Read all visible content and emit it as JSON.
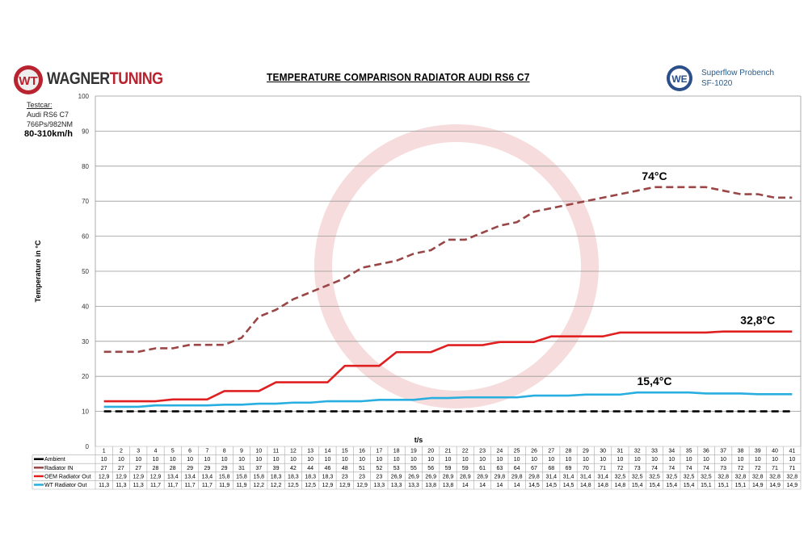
{
  "header": {
    "brand_part1": "WAGNER",
    "brand_part2": "TUNING",
    "bench_line1": "Superflow Probench",
    "bench_line2": "SF-1020"
  },
  "testcar": {
    "label": "Testcar:",
    "model": "Audi RS6 C7",
    "power": "766Ps/982NM",
    "speed": "80-310km/h"
  },
  "chart_data": {
    "type": "line",
    "title": "TEMPERATURE COMPARISON RADIATOR AUDI RS6 C7",
    "xlabel": "t/s",
    "ylabel": "Temperature in °C",
    "ylim": [
      0,
      100
    ],
    "yticks": [
      0,
      10,
      20,
      30,
      40,
      50,
      60,
      70,
      80,
      90,
      100
    ],
    "grid": true,
    "legend": "data-table-below",
    "categories": [
      1,
      2,
      3,
      4,
      5,
      6,
      7,
      8,
      9,
      10,
      11,
      12,
      13,
      14,
      15,
      16,
      17,
      18,
      19,
      20,
      21,
      22,
      23,
      24,
      25,
      26,
      27,
      28,
      29,
      30,
      31,
      32,
      33,
      34,
      35,
      36,
      37,
      38,
      39,
      40,
      41
    ],
    "series": [
      {
        "name": "Ambient",
        "color": "#000000",
        "dash": true,
        "values": [
          10,
          10,
          10,
          10,
          10,
          10,
          10,
          10,
          10,
          10,
          10,
          10,
          10,
          10,
          10,
          10,
          10,
          10,
          10,
          10,
          10,
          10,
          10,
          10,
          10,
          10,
          10,
          10,
          10,
          10,
          10,
          10,
          10,
          10,
          10,
          10,
          10,
          10,
          10,
          10,
          10
        ],
        "labels": [
          "10",
          "10",
          "10",
          "10",
          "10",
          "10",
          "10",
          "10",
          "10",
          "10",
          "10",
          "10",
          "10",
          "10",
          "10",
          "10",
          "10",
          "10",
          "10",
          "10",
          "10",
          "10",
          "10",
          "10",
          "10",
          "10",
          "10",
          "10",
          "10",
          "10",
          "10",
          "10",
          "10",
          "10",
          "10",
          "10",
          "10",
          "10",
          "10",
          "10",
          "10"
        ]
      },
      {
        "name": "Radiator IN",
        "color": "#9a4646",
        "dash": true,
        "values": [
          27,
          27,
          27,
          28,
          28,
          29,
          29,
          29,
          31,
          37,
          39,
          42,
          44,
          46,
          48,
          51,
          52,
          53,
          55,
          56,
          59,
          59,
          61,
          63,
          64,
          67,
          68,
          69,
          70,
          71,
          72,
          73,
          74,
          74,
          74,
          74,
          73,
          72,
          72,
          71,
          71
        ],
        "labels": [
          "27",
          "27",
          "27",
          "28",
          "28",
          "29",
          "29",
          "29",
          "31",
          "37",
          "39",
          "42",
          "44",
          "46",
          "48",
          "51",
          "52",
          "53",
          "55",
          "56",
          "59",
          "59",
          "61",
          "63",
          "64",
          "67",
          "68",
          "69",
          "70",
          "71",
          "72",
          "73",
          "74",
          "74",
          "74",
          "74",
          "73",
          "72",
          "72",
          "71",
          "71"
        ]
      },
      {
        "name": "OEM Radiator Out",
        "color": "#e02020",
        "dash": false,
        "values": [
          12.9,
          12.9,
          12.9,
          12.9,
          13.4,
          13.4,
          13.4,
          15.8,
          15.8,
          15.8,
          18.3,
          18.3,
          18.3,
          18.3,
          23,
          23,
          23,
          26.9,
          26.9,
          26.9,
          28.9,
          28.9,
          28.9,
          29.8,
          29.8,
          29.8,
          31.4,
          31.4,
          31.4,
          31.4,
          32.5,
          32.5,
          32.5,
          32.5,
          32.5,
          32.5,
          32.8,
          32.8,
          32.8,
          32.8,
          32.8
        ],
        "labels": [
          "12,9",
          "12,9",
          "12,9",
          "12,9",
          "13,4",
          "13,4",
          "13,4",
          "15,8",
          "15,8",
          "15,8",
          "18,3",
          "18,3",
          "18,3",
          "18,3",
          "23",
          "23",
          "23",
          "26,9",
          "26,9",
          "26,9",
          "28,9",
          "28,9",
          "28,9",
          "29,8",
          "29,8",
          "29,8",
          "31,4",
          "31,4",
          "31,4",
          "31,4",
          "32,5",
          "32,5",
          "32,5",
          "32,5",
          "32,5",
          "32,5",
          "32,8",
          "32,8",
          "32,8",
          "32,8",
          "32,8"
        ]
      },
      {
        "name": "WT Radiator Out",
        "color": "#29aee0",
        "dash": false,
        "values": [
          11.3,
          11.3,
          11.3,
          11.7,
          11.7,
          11.7,
          11.7,
          11.9,
          11.9,
          12.2,
          12.2,
          12.5,
          12.5,
          12.9,
          12.9,
          12.9,
          13.3,
          13.3,
          13.3,
          13.8,
          13.8,
          14,
          14,
          14,
          14,
          14.5,
          14.5,
          14.5,
          14.8,
          14.8,
          14.8,
          15.4,
          15.4,
          15.4,
          15.4,
          15.1,
          15.1,
          15.1,
          14.9,
          14.9,
          14.9
        ],
        "labels": [
          "11,3",
          "11,3",
          "11,3",
          "11,7",
          "11,7",
          "11,7",
          "11,7",
          "11,9",
          "11,9",
          "12,2",
          "12,2",
          "12,5",
          "12,5",
          "12,9",
          "12,9",
          "12,9",
          "13,3",
          "13,3",
          "13,3",
          "13,8",
          "13,8",
          "14",
          "14",
          "14",
          "14",
          "14,5",
          "14,5",
          "14,5",
          "14,8",
          "14,8",
          "14,8",
          "15,4",
          "15,4",
          "15,4",
          "15,4",
          "15,1",
          "15,1",
          "15,1",
          "14,9",
          "14,9",
          "14,9"
        ]
      }
    ],
    "annotations": [
      {
        "text": "74°C",
        "x": 33,
        "y": 74,
        "color": "#000000"
      },
      {
        "text": "32,8°C",
        "x": 39,
        "y": 32.8,
        "color": "#000000"
      },
      {
        "text": "15,4°C",
        "x": 33,
        "y": 15.4,
        "color": "#000000"
      }
    ]
  }
}
